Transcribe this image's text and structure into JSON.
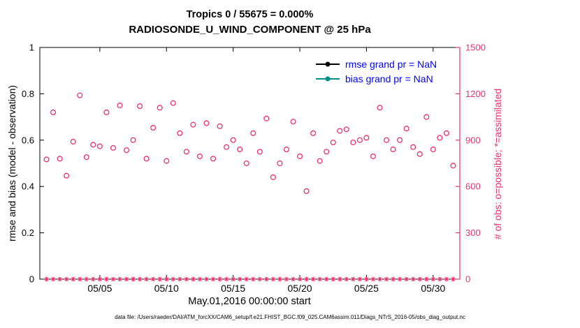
{
  "title": {
    "line1": "Tropics 0 / 55675 = 0.000%",
    "line2": "RADIOSONDE_U_WIND_COMPONENT @ 25 hPa"
  },
  "left_axis": {
    "label": "rmse and bias (model - observation)",
    "ticks": [
      "0",
      "0.2",
      "0.4",
      "0.6",
      "0.8",
      "1"
    ],
    "tick_values": [
      0,
      0.2,
      0.4,
      0.6,
      0.8,
      1
    ],
    "range": [
      0,
      1
    ]
  },
  "right_axis": {
    "label": "# of obs: o=possible; *=assimilated",
    "ticks": [
      "0",
      "300",
      "600",
      "900",
      "1200",
      "1500"
    ],
    "tick_values": [
      0,
      300,
      600,
      900,
      1200,
      1500
    ],
    "range": [
      0,
      1500
    ]
  },
  "x_axis": {
    "label": "May.01,2016 00:00:00 start",
    "ticks": [
      "05/05",
      "05/10",
      "05/15",
      "05/20",
      "05/25",
      "05/30"
    ],
    "tick_days": [
      5,
      10,
      15,
      20,
      25,
      30
    ]
  },
  "legend": [
    {
      "label": "rmse grand pr = NaN",
      "color": "#000000"
    },
    {
      "label": "bias grand pr = NaN",
      "color": "#008f86"
    }
  ],
  "caption": "data file: /Users/raeder/DAI/ATM_forcXX/CAM6_setup/f.e21.FHIST_BGC.f09_025.CAM6assim.011/Diags_NTrS_2016-05/obs_diag_output.nc",
  "colors": {
    "obs": "#e8336e",
    "rmse": "#000000",
    "bias": "#008f86",
    "legend_text": "#0000ff",
    "axis": "#000000"
  },
  "chart_data": {
    "type": "scatter",
    "title": "Tropics 0 / 55675 = 0.000% — RADIOSONDE_U_WIND_COMPONENT @ 25 hPa",
    "x_unit": "days since May.01,2016 00:00:00",
    "x_range_days": [
      0.5,
      32
    ],
    "y_left_range": [
      0,
      1
    ],
    "y_right_range": [
      0,
      1500
    ],
    "grid": false,
    "legend_position": "top-right-inside",
    "x_days": [
      1,
      1.5,
      2,
      2.5,
      3,
      3.5,
      4,
      4.5,
      5,
      5.5,
      6,
      6.5,
      7,
      7.5,
      8,
      8.5,
      9,
      9.5,
      10,
      10.5,
      11,
      11.5,
      12,
      12.5,
      13,
      13.5,
      14,
      14.5,
      15,
      15.5,
      16,
      16.5,
      17,
      17.5,
      18,
      18.5,
      19,
      19.5,
      20,
      20.5,
      21,
      21.5,
      22,
      22.5,
      23,
      23.5,
      24,
      24.5,
      25,
      25.5,
      26,
      26.5,
      27,
      27.5,
      28,
      28.5,
      29,
      29.5,
      30,
      30.5,
      31,
      31.5
    ],
    "series": [
      {
        "name": "possible_obs",
        "legend": "o=possible",
        "marker": "o",
        "axis": "right",
        "color": "#e8336e",
        "values": [
          775,
          1080,
          780,
          670,
          890,
          1190,
          790,
          870,
          860,
          1080,
          850,
          1125,
          835,
          900,
          1120,
          780,
          980,
          1110,
          765,
          1140,
          945,
          825,
          1000,
          795,
          1010,
          780,
          990,
          855,
          900,
          840,
          750,
          945,
          825,
          1040,
          660,
          750,
          840,
          1020,
          795,
          570,
          945,
          765,
          825,
          885,
          960,
          970,
          885,
          900,
          915,
          795,
          1110,
          900,
          840,
          900,
          975,
          855,
          810,
          1050,
          840,
          915,
          945,
          735
        ]
      },
      {
        "name": "assimilated_obs",
        "legend": "*=assimilated",
        "marker": "*",
        "axis": "right",
        "color": "#e8336e",
        "values": [
          0,
          0,
          0,
          0,
          0,
          0,
          0,
          0,
          0,
          0,
          0,
          0,
          0,
          0,
          0,
          0,
          0,
          0,
          0,
          0,
          0,
          0,
          0,
          0,
          0,
          0,
          0,
          0,
          0,
          0,
          0,
          0,
          0,
          0,
          0,
          0,
          0,
          0,
          0,
          0,
          0,
          0,
          0,
          0,
          0,
          0,
          0,
          0,
          0,
          0,
          0,
          0,
          0,
          0,
          0,
          0,
          0,
          0,
          0,
          0,
          0,
          0
        ]
      },
      {
        "name": "rmse",
        "legend": "rmse grand pr = NaN",
        "axis": "left",
        "color": "#000000",
        "values": null,
        "note": "all NaN, not plotted"
      },
      {
        "name": "bias",
        "legend": "bias grand pr = NaN",
        "axis": "left",
        "color": "#008f86",
        "values": null,
        "note": "all NaN, not plotted"
      }
    ]
  }
}
